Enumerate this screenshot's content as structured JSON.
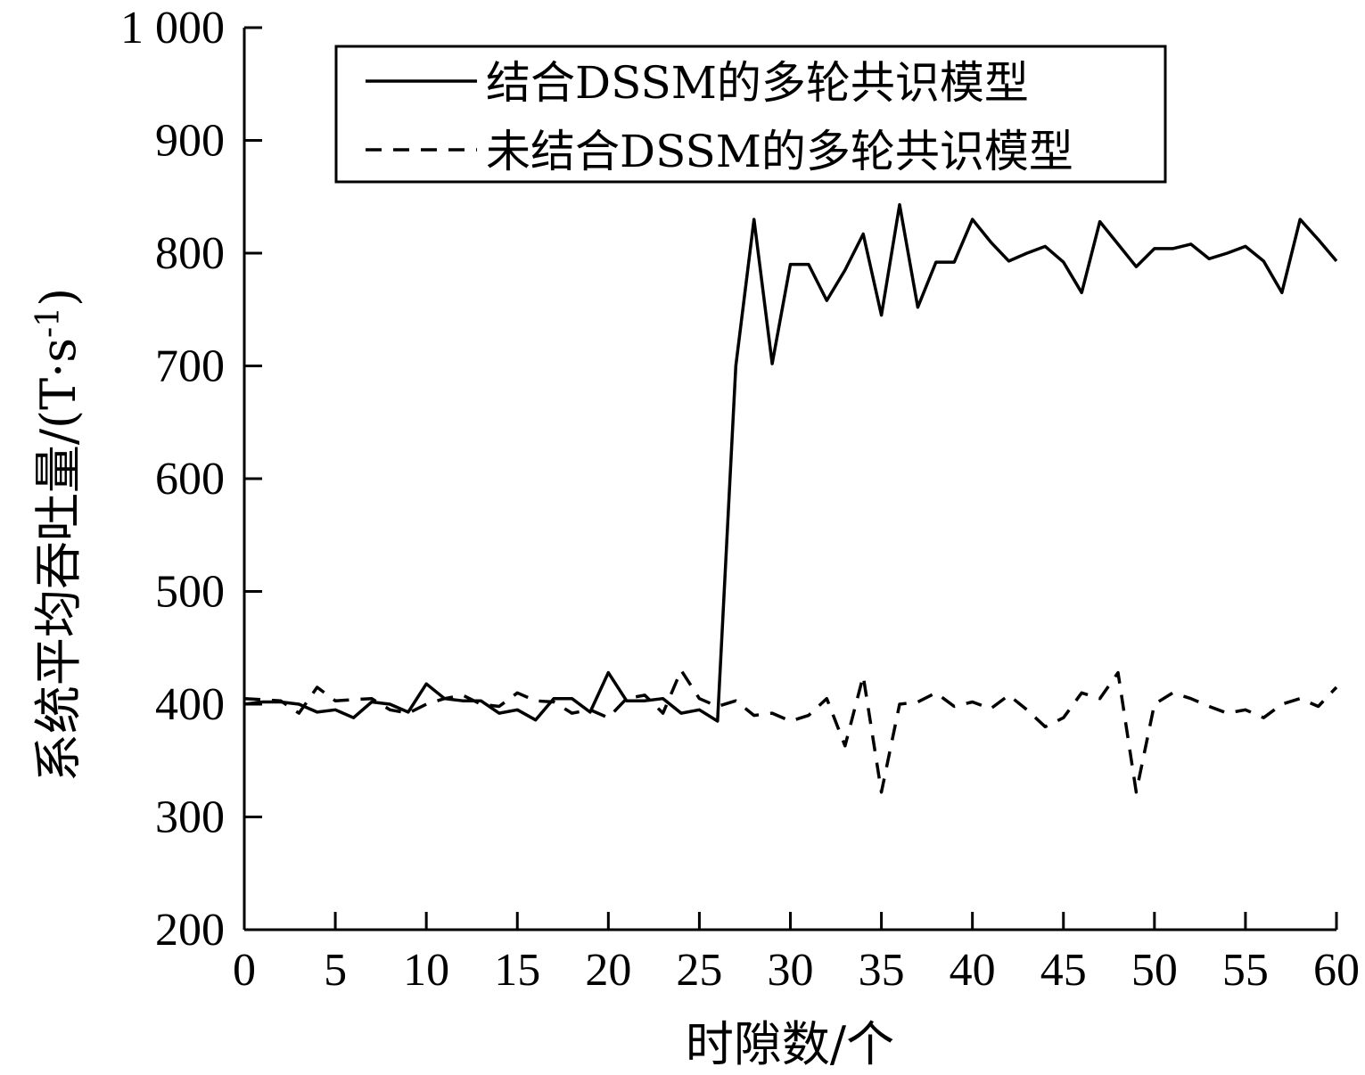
{
  "chart_data": {
    "type": "line",
    "title": "",
    "xlabel": "时隙数/个",
    "ylabel": "系统平均吞吐量/(T·s",
    "ylabel_superscript": "-1",
    "ylabel_suffix": ")",
    "xlim": [
      0,
      60
    ],
    "ylim": [
      200,
      1000
    ],
    "xticks": [
      0,
      5,
      10,
      15,
      20,
      25,
      30,
      35,
      40,
      45,
      50,
      55,
      60
    ],
    "yticks": [
      200,
      300,
      400,
      500,
      600,
      700,
      800,
      900,
      1000
    ],
    "ytick_labels": [
      "200",
      "300",
      "400",
      "500",
      "600",
      "700",
      "800",
      "900",
      "1 000"
    ],
    "grid": false,
    "legend_position": "top-right",
    "series": [
      {
        "name": "结合DSSM的多轮共识模型",
        "style": "solid",
        "color": "#000000",
        "x": [
          0,
          1,
          2,
          3,
          4,
          5,
          6,
          7,
          8,
          9,
          10,
          11,
          12,
          13,
          14,
          15,
          16,
          17,
          18,
          19,
          20,
          21,
          22,
          23,
          24,
          25,
          26,
          27,
          28,
          29,
          30,
          31,
          32,
          33,
          34,
          35,
          36,
          37,
          38,
          39,
          40,
          41,
          42,
          43,
          44,
          45,
          46,
          47,
          48,
          49,
          50,
          51,
          52,
          53,
          54,
          55,
          56,
          57,
          58,
          59,
          60
        ],
        "values": [
          400,
          402,
          402,
          400,
          393,
          395,
          388,
          402,
          400,
          393,
          418,
          405,
          403,
          403,
          392,
          395,
          386,
          405,
          405,
          393,
          428,
          403,
          403,
          405,
          392,
          395,
          385,
          700,
          830,
          702,
          790,
          790,
          758,
          785,
          817,
          745,
          843,
          752,
          792,
          792,
          830,
          810,
          793,
          800,
          806,
          792,
          765,
          828,
          808,
          788,
          804,
          804,
          808,
          795,
          800,
          806,
          793,
          765,
          830,
          812,
          793
        ]
      },
      {
        "name": "未结合DSSM的多轮共识模型",
        "style": "dashed",
        "color": "#000000",
        "x": [
          0,
          1,
          2,
          3,
          4,
          5,
          6,
          7,
          8,
          9,
          10,
          11,
          12,
          13,
          14,
          15,
          16,
          17,
          18,
          19,
          20,
          21,
          22,
          23,
          24,
          25,
          26,
          27,
          28,
          29,
          30,
          31,
          32,
          33,
          34,
          35,
          36,
          37,
          38,
          39,
          40,
          41,
          42,
          43,
          44,
          45,
          46,
          47,
          48,
          49,
          50,
          51,
          52,
          53,
          54,
          55,
          56,
          57,
          58,
          59,
          60
        ],
        "values": [
          405,
          404,
          403,
          392,
          415,
          403,
          404,
          405,
          395,
          392,
          400,
          405,
          408,
          400,
          398,
          410,
          403,
          402,
          392,
          395,
          388,
          405,
          408,
          392,
          430,
          405,
          398,
          403,
          390,
          392,
          385,
          390,
          405,
          363,
          425,
          322,
          400,
          402,
          410,
          398,
          402,
          396,
          408,
          395,
          380,
          388,
          410,
          405,
          428,
          322,
          400,
          410,
          405,
          398,
          392,
          395,
          388,
          400,
          405,
          398,
          415
        ]
      }
    ]
  }
}
